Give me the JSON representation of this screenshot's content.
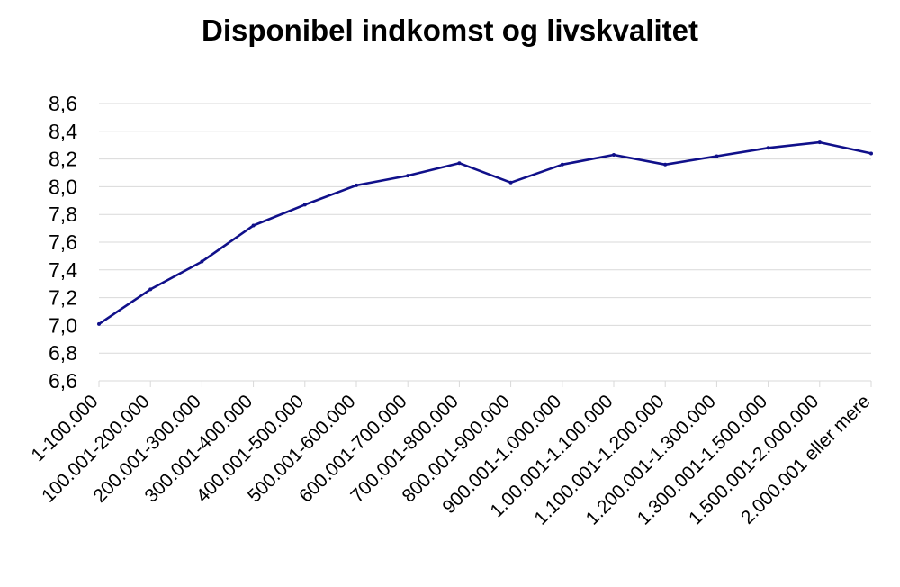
{
  "chart_data": {
    "type": "line",
    "title": "Disponibel indkomst og livskvalitet",
    "xlabel": "",
    "ylabel": "",
    "ylim": [
      6.6,
      8.6
    ],
    "y_ticks": [
      "6,6",
      "6,8",
      "7,0",
      "7,2",
      "7,4",
      "7,6",
      "7,8",
      "8,0",
      "8,2",
      "8,4",
      "8,6"
    ],
    "grid": true,
    "legend": "none",
    "line_color": "#10108a",
    "categories": [
      "1-100.000",
      "100.001-200.000",
      "200.001-300.000",
      "300.001-400.000",
      "400.001-500.000",
      "500.001-600.000",
      "600.001-700.000",
      "700.001-800.000",
      "800.001-900.000",
      "900.001-1.000.000",
      "1.00.001-1.100.000",
      "1.100.001-1.200.000",
      "1.200.001-1.300.000",
      "1.300.001-1.500.000",
      "1.500.001-2.000.000",
      "2.000.001 eller mere"
    ],
    "series": [
      {
        "values": [
          7.01,
          7.26,
          7.46,
          7.72,
          7.87,
          8.01,
          8.08,
          8.17,
          8.03,
          8.16,
          8.23,
          8.16,
          8.22,
          8.28,
          8.32,
          8.24
        ]
      }
    ]
  }
}
